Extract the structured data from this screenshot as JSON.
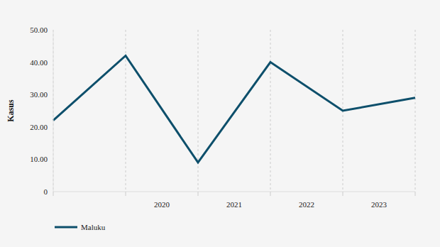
{
  "chart_data": {
    "type": "line",
    "y_label": "Kasus",
    "categories": [
      null,
      "2020",
      "2021",
      "2022",
      "2023",
      null
    ],
    "series": [
      {
        "name": "Maluku",
        "color": "#0d4f6b",
        "values": [
          22,
          42,
          9,
          40,
          25,
          29
        ]
      }
    ],
    "ylim": [
      0,
      50
    ],
    "yticks": [
      0,
      {
        "value": 10,
        "label": "10.00"
      },
      {
        "value": 20,
        "label": "20.00"
      },
      {
        "value": 30,
        "label": "30.00"
      },
      {
        "value": 40,
        "label": "40.00"
      },
      {
        "value": 50,
        "label": "50.00"
      }
    ],
    "grid": true,
    "legend": "bottom-left"
  }
}
